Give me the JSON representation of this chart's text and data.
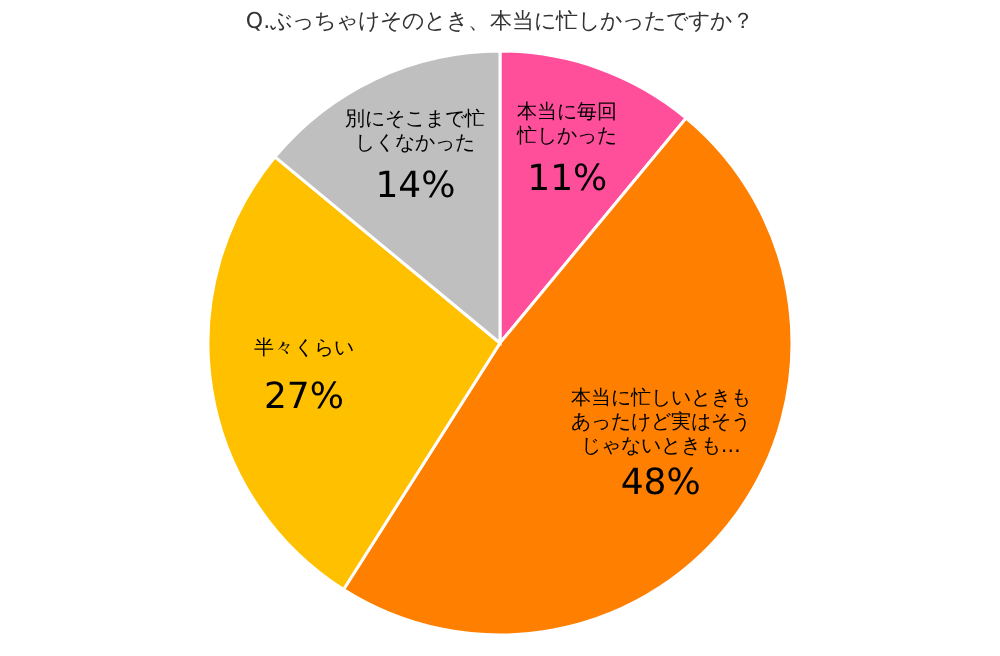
{
  "chart_data": {
    "type": "pie",
    "title": "Q.ぶっちゃけそのとき、本当に忙しかったですか？",
    "categories": [
      "本当に毎回忙しかった",
      "本当に忙しいときもあったけど実はそうじゃないときも…",
      "半々くらい",
      "別にそこまで忙しくなかった"
    ],
    "values": [
      11,
      48,
      27,
      14
    ],
    "value_labels": [
      "11%",
      "48%",
      "27%",
      "14%"
    ],
    "colors": [
      "#ff4f9a",
      "#ff7f00",
      "#ffc000",
      "#bfbfbf"
    ],
    "legend": false
  }
}
